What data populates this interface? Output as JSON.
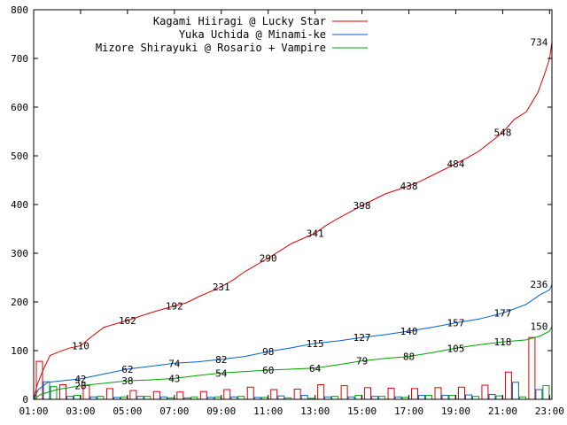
{
  "chart_data": {
    "type": "line",
    "xlim": [
      1,
      23.1
    ],
    "ylim": [
      0,
      800
    ],
    "x_ticks": [
      {
        "value": 1,
        "label": "01:00"
      },
      {
        "value": 3,
        "label": "03:00"
      },
      {
        "value": 5,
        "label": "05:00"
      },
      {
        "value": 7,
        "label": "07:00"
      },
      {
        "value": 9,
        "label": "09:00"
      },
      {
        "value": 11,
        "label": "11:00"
      },
      {
        "value": 13,
        "label": "13:00"
      },
      {
        "value": 15,
        "label": "15:00"
      },
      {
        "value": 17,
        "label": "17:00"
      },
      {
        "value": 19,
        "label": "19:00"
      },
      {
        "value": 21,
        "label": "21:00"
      },
      {
        "value": 23,
        "label": "23:00"
      }
    ],
    "y_ticks": [
      {
        "value": 0,
        "label": "0"
      },
      {
        "value": 100,
        "label": "100"
      },
      {
        "value": 200,
        "label": "200"
      },
      {
        "value": 300,
        "label": "300"
      },
      {
        "value": 400,
        "label": "400"
      },
      {
        "value": 500,
        "label": "500"
      },
      {
        "value": 600,
        "label": "600"
      },
      {
        "value": 700,
        "label": "700"
      },
      {
        "value": 800,
        "label": "800"
      }
    ],
    "grid": false,
    "legend_position": "top-right",
    "series": [
      {
        "name": "Kagami Hiiragi @ Lucky Star",
        "color": "#e00000",
        "cumulative": [
          [
            1,
            0
          ],
          [
            1.15,
            30
          ],
          [
            1.4,
            60
          ],
          [
            1.7,
            90
          ],
          [
            2,
            96
          ],
          [
            2.5,
            105
          ],
          [
            3,
            110
          ],
          [
            3.5,
            130
          ],
          [
            4,
            148
          ],
          [
            5,
            162
          ],
          [
            5.5,
            170
          ],
          [
            6,
            178
          ],
          [
            7,
            192
          ],
          [
            7.5,
            198
          ],
          [
            8,
            210
          ],
          [
            9,
            231
          ],
          [
            9.5,
            245
          ],
          [
            10,
            262
          ],
          [
            11,
            290
          ],
          [
            11.5,
            305
          ],
          [
            12,
            320
          ],
          [
            13,
            341
          ],
          [
            13.5,
            358
          ],
          [
            14,
            372
          ],
          [
            15,
            398
          ],
          [
            15.5,
            410
          ],
          [
            16,
            422
          ],
          [
            17,
            438
          ],
          [
            17.5,
            448
          ],
          [
            18,
            460
          ],
          [
            19,
            484
          ],
          [
            19.5,
            496
          ],
          [
            20,
            510
          ],
          [
            21,
            548
          ],
          [
            21.5,
            575
          ],
          [
            22,
            590
          ],
          [
            22.5,
            630
          ],
          [
            22.8,
            670
          ],
          [
            23,
            700
          ],
          [
            23.1,
            734
          ]
        ],
        "point_labels": [
          {
            "x": 3,
            "y": 110,
            "text": "110"
          },
          {
            "x": 5,
            "y": 162,
            "text": "162"
          },
          {
            "x": 7,
            "y": 192,
            "text": "192"
          },
          {
            "x": 9,
            "y": 231,
            "text": "231"
          },
          {
            "x": 11,
            "y": 290,
            "text": "290"
          },
          {
            "x": 13,
            "y": 341,
            "text": "341"
          },
          {
            "x": 15,
            "y": 398,
            "text": "398"
          },
          {
            "x": 17,
            "y": 438,
            "text": "438"
          },
          {
            "x": 19,
            "y": 484,
            "text": "484"
          },
          {
            "x": 21,
            "y": 548,
            "text": "548"
          },
          {
            "x": 23,
            "y": 734,
            "text": "734"
          }
        ],
        "hourly": [
          78,
          30,
          28,
          22,
          18,
          16,
          15,
          16,
          20,
          25,
          20,
          21,
          30,
          28,
          24,
          23,
          22,
          24,
          25,
          29,
          56,
          127
        ]
      },
      {
        "name": "Yuka Uchida @ Minami-ke",
        "color": "#0060d0",
        "cumulative": [
          [
            1,
            0
          ],
          [
            1.2,
            20
          ],
          [
            1.6,
            35
          ],
          [
            2,
            37
          ],
          [
            3,
            42
          ],
          [
            4,
            52
          ],
          [
            5,
            62
          ],
          [
            6,
            68
          ],
          [
            7,
            74
          ],
          [
            8,
            77
          ],
          [
            9,
            82
          ],
          [
            10,
            88
          ],
          [
            11,
            98
          ],
          [
            12,
            106
          ],
          [
            13,
            115
          ],
          [
            14,
            120
          ],
          [
            15,
            127
          ],
          [
            16,
            133
          ],
          [
            17,
            140
          ],
          [
            18,
            148
          ],
          [
            19,
            157
          ],
          [
            20,
            165
          ],
          [
            21,
            177
          ],
          [
            22,
            195
          ],
          [
            22.6,
            215
          ],
          [
            23,
            225
          ],
          [
            23.1,
            236
          ]
        ],
        "point_labels": [
          {
            "x": 3,
            "y": 42,
            "text": "42"
          },
          {
            "x": 5,
            "y": 62,
            "text": "62"
          },
          {
            "x": 7,
            "y": 74,
            "text": "74"
          },
          {
            "x": 9,
            "y": 82,
            "text": "82"
          },
          {
            "x": 11,
            "y": 98,
            "text": "98"
          },
          {
            "x": 13,
            "y": 115,
            "text": "115"
          },
          {
            "x": 15,
            "y": 127,
            "text": "127"
          },
          {
            "x": 17,
            "y": 140,
            "text": "140"
          },
          {
            "x": 19,
            "y": 157,
            "text": "157"
          },
          {
            "x": 21,
            "y": 177,
            "text": "177"
          },
          {
            "x": 23,
            "y": 236,
            "text": "236"
          }
        ],
        "hourly": [
          36,
          6,
          5,
          4,
          6,
          5,
          3,
          4,
          5,
          4,
          7,
          8,
          5,
          5,
          6,
          5,
          8,
          8,
          9,
          10,
          35,
          20
        ]
      },
      {
        "name": "Mizore Shirayuki @ Rosario + Vampire",
        "color": "#00a000",
        "cumulative": [
          [
            1,
            0
          ],
          [
            1.3,
            10
          ],
          [
            2,
            20
          ],
          [
            3,
            28
          ],
          [
            4,
            33
          ],
          [
            5,
            38
          ],
          [
            6,
            40
          ],
          [
            7,
            43
          ],
          [
            8,
            49
          ],
          [
            9,
            54
          ],
          [
            10,
            57
          ],
          [
            11,
            60
          ],
          [
            12,
            62
          ],
          [
            13,
            64
          ],
          [
            14,
            71
          ],
          [
            15,
            79
          ],
          [
            16,
            84
          ],
          [
            17,
            88
          ],
          [
            18,
            96
          ],
          [
            19,
            105
          ],
          [
            20,
            112
          ],
          [
            21,
            118
          ],
          [
            22,
            122
          ],
          [
            22.6,
            130
          ],
          [
            23,
            140
          ],
          [
            23.1,
            150
          ]
        ],
        "point_labels": [
          {
            "x": 3,
            "y": 28,
            "text": "28"
          },
          {
            "x": 5,
            "y": 38,
            "text": "38"
          },
          {
            "x": 7,
            "y": 43,
            "text": "43"
          },
          {
            "x": 9,
            "y": 54,
            "text": "54"
          },
          {
            "x": 11,
            "y": 60,
            "text": "60"
          },
          {
            "x": 13,
            "y": 64,
            "text": "64"
          },
          {
            "x": 15,
            "y": 79,
            "text": "79"
          },
          {
            "x": 17,
            "y": 88,
            "text": "88"
          },
          {
            "x": 19,
            "y": 105,
            "text": "105"
          },
          {
            "x": 21,
            "y": 118,
            "text": "118"
          },
          {
            "x": 23,
            "y": 150,
            "text": "150"
          }
        ],
        "hourly": [
          26,
          8,
          6,
          5,
          6,
          3,
          5,
          5,
          6,
          4,
          3,
          2,
          6,
          8,
          6,
          4,
          8,
          8,
          6,
          7,
          5,
          28
        ]
      }
    ]
  }
}
